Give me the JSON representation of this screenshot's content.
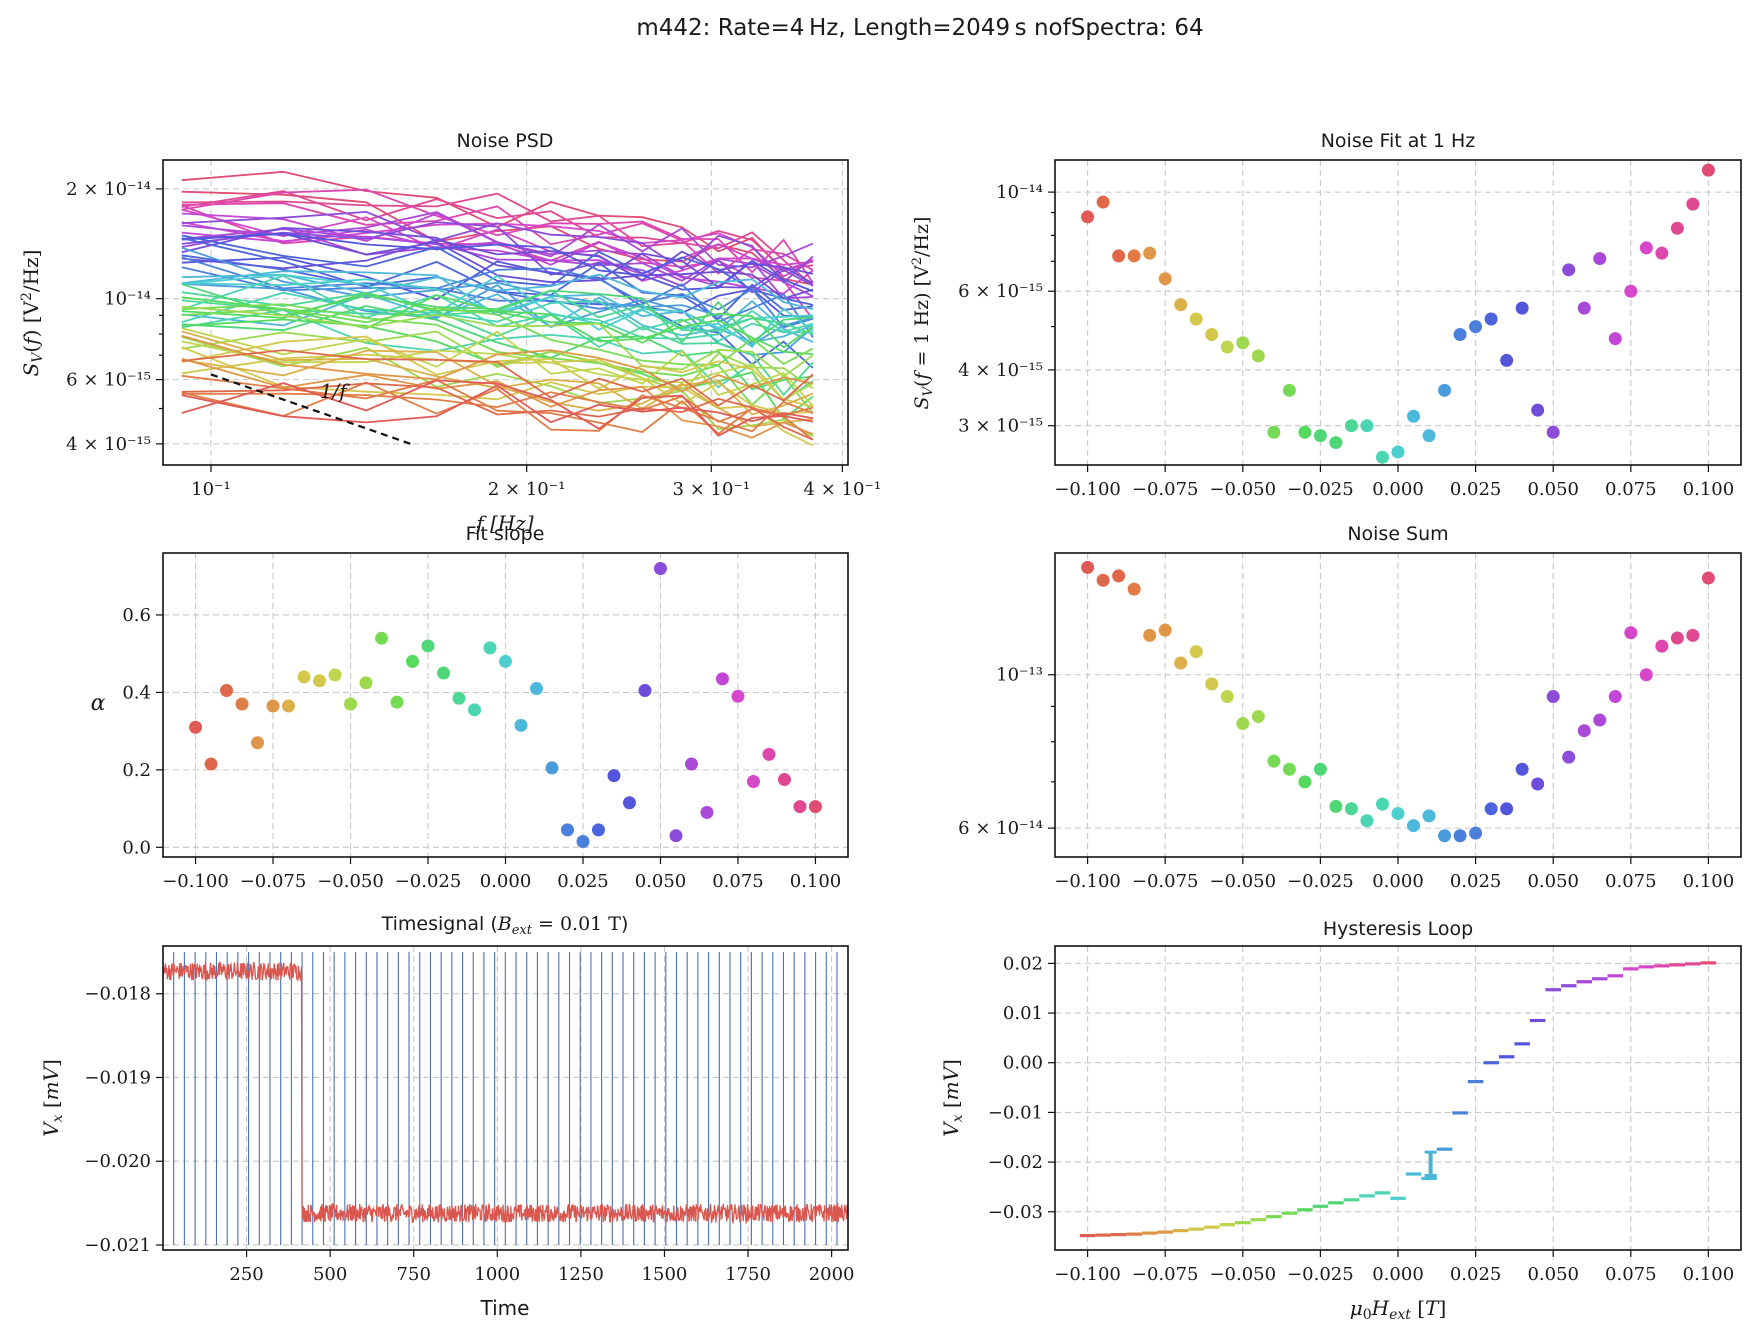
{
  "chart_data": {
    "suptitle": "m442: Rate=4 Hz, Length=2049 s nofSpectra: 64",
    "colors": [
      "#e05a56",
      "#e0684a",
      "#e17c47",
      "#df9648",
      "#dcb049",
      "#d3c84c",
      "#bfd54d",
      "#9dd94f",
      "#76db54",
      "#56da5e",
      "#4fd676",
      "#4cd795",
      "#4ad5b3",
      "#4dcfd0",
      "#4cb8da",
      "#4a9bdc",
      "#4a7fdb",
      "#4c64dc",
      "#5356da",
      "#6e4ed9",
      "#8c4cd9",
      "#aa49d8",
      "#c446d6",
      "#d747ca",
      "#de47ae",
      "#e04891",
      "#e14c73"
    ],
    "charts": [
      {
        "id": "noise_psd",
        "type": "line",
        "title": "Noise PSD",
        "xlabel": "f [Hz]",
        "ylabel": "S_V(f) [V²/Hz]",
        "xscale": "log",
        "yscale": "log",
        "xlim": [
          0.09,
          0.405
        ],
        "ylim": [
          3.5e-15,
          2.4e-14
        ],
        "xticks": [
          {
            "v": 0.1,
            "label": "10⁻¹"
          },
          {
            "v": 0.2,
            "label": "2 × 10⁻¹"
          },
          {
            "v": 0.3,
            "label": "3 × 10⁻¹"
          },
          {
            "v": 0.4,
            "label": "4 × 10⁻¹"
          }
        ],
        "yticks": [
          {
            "v": 4e-15,
            "label": "4 × 10⁻¹⁵"
          },
          {
            "v": 6e-15,
            "label": "6 × 10⁻¹⁵"
          },
          {
            "v": 1e-14,
            "label": "10⁻¹⁴"
          },
          {
            "v": 2e-14,
            "label": "2 × 10⁻¹⁴"
          }
        ],
        "x": [
          0.0938,
          0.1172,
          0.1406,
          0.1641,
          0.1875,
          0.2109,
          0.2344,
          0.2578,
          0.2813,
          0.3047,
          0.3281,
          0.3516,
          0.375
        ],
        "n_series": 64,
        "start_range": [
          5e-15,
          2.2e-14
        ],
        "end_range": [
          4.5e-15,
          1.25e-14
        ],
        "reference": {
          "label": "1/f",
          "x": [
            0.1,
            0.155
          ],
          "y": [
            6.2e-15,
            4e-15
          ]
        }
      },
      {
        "id": "noise_fit",
        "type": "scatter",
        "title": "Noise Fit at 1 Hz",
        "xlabel": "",
        "ylabel": "S_V(f = 1 Hz) [V²/Hz]",
        "yscale": "log",
        "xlim": [
          -0.1105,
          0.1105
        ],
        "ylim": [
          2.45e-15,
          1.18e-14
        ],
        "xticks": [
          {
            "v": -0.1,
            "label": "−0.100"
          },
          {
            "v": -0.075,
            "label": "−0.075"
          },
          {
            "v": -0.05,
            "label": "−0.050"
          },
          {
            "v": -0.025,
            "label": "−0.025"
          },
          {
            "v": 0.0,
            "label": "0.000"
          },
          {
            "v": 0.025,
            "label": "0.025"
          },
          {
            "v": 0.05,
            "label": "0.050"
          },
          {
            "v": 0.075,
            "label": "0.075"
          },
          {
            "v": 0.1,
            "label": "0.100"
          }
        ],
        "yticks": [
          {
            "v": 3e-15,
            "label": "3 × 10⁻¹⁵"
          },
          {
            "v": 4e-15,
            "label": "4 × 10⁻¹⁵"
          },
          {
            "v": 6e-15,
            "label": "6 × 10⁻¹⁵"
          },
          {
            "v": 1e-14,
            "label": "10⁻¹⁴"
          }
        ],
        "x": [
          -0.1,
          -0.095,
          -0.09,
          -0.085,
          -0.08,
          -0.075,
          -0.07,
          -0.065,
          -0.06,
          -0.055,
          -0.05,
          -0.045,
          -0.04,
          -0.035,
          -0.03,
          -0.025,
          -0.02,
          -0.015,
          -0.01,
          -0.005,
          0.0,
          0.005,
          0.01,
          0.015,
          0.02,
          0.025,
          0.03,
          0.035,
          0.04,
          0.045,
          0.05,
          0.055,
          0.06,
          0.065,
          0.07,
          0.075,
          0.08,
          0.085,
          0.09,
          0.095,
          0.1
        ],
        "y": [
          8.8e-15,
          9.5e-15,
          7.2e-15,
          7.2e-15,
          7.3e-15,
          6.4e-15,
          5.6e-15,
          5.2e-15,
          4.8e-15,
          4.5e-15,
          4.6e-15,
          4.3e-15,
          2.9e-15,
          3.6e-15,
          2.9e-15,
          2.85e-15,
          2.75e-15,
          3e-15,
          3e-15,
          2.55e-15,
          2.62e-15,
          3.15e-15,
          2.85e-15,
          3.6e-15,
          4.8e-15,
          5e-15,
          5.2e-15,
          4.2e-15,
          5.5e-15,
          3.25e-15,
          2.9e-15,
          6.7e-15,
          5.5e-15,
          7.1e-15,
          4.7e-15,
          6e-15,
          7.5e-15,
          7.3e-15,
          8.3e-15,
          9.4e-15,
          1.12e-14
        ]
      },
      {
        "id": "fit_slope",
        "type": "scatter",
        "title": "Fit slope",
        "xlabel": "",
        "ylabel": "α",
        "xlim": [
          -0.1105,
          0.1105
        ],
        "ylim": [
          -0.025,
          0.76
        ],
        "xticks": [
          {
            "v": -0.1,
            "label": "−0.100"
          },
          {
            "v": -0.075,
            "label": "−0.075"
          },
          {
            "v": -0.05,
            "label": "−0.050"
          },
          {
            "v": -0.025,
            "label": "−0.025"
          },
          {
            "v": 0.0,
            "label": "0.000"
          },
          {
            "v": 0.025,
            "label": "0.025"
          },
          {
            "v": 0.05,
            "label": "0.050"
          },
          {
            "v": 0.075,
            "label": "0.075"
          },
          {
            "v": 0.1,
            "label": "0.100"
          }
        ],
        "yticks": [
          {
            "v": 0.0,
            "label": "0.0"
          },
          {
            "v": 0.2,
            "label": "0.2"
          },
          {
            "v": 0.4,
            "label": "0.4"
          },
          {
            "v": 0.6,
            "label": "0.6"
          }
        ],
        "x": [
          -0.1,
          -0.095,
          -0.09,
          -0.085,
          -0.08,
          -0.075,
          -0.07,
          -0.065,
          -0.06,
          -0.055,
          -0.05,
          -0.045,
          -0.04,
          -0.035,
          -0.03,
          -0.025,
          -0.02,
          -0.015,
          -0.01,
          -0.005,
          0.0,
          0.005,
          0.01,
          0.015,
          0.02,
          0.025,
          0.03,
          0.035,
          0.04,
          0.045,
          0.05,
          0.055,
          0.06,
          0.065,
          0.07,
          0.075,
          0.08,
          0.085,
          0.09,
          0.095,
          0.1
        ],
        "y": [
          0.31,
          0.215,
          0.405,
          0.37,
          0.27,
          0.365,
          0.365,
          0.44,
          0.43,
          0.445,
          0.37,
          0.425,
          0.54,
          0.375,
          0.48,
          0.52,
          0.45,
          0.385,
          0.355,
          0.515,
          0.48,
          0.315,
          0.41,
          0.205,
          0.045,
          0.015,
          0.045,
          0.185,
          0.115,
          0.405,
          0.72,
          0.03,
          0.215,
          0.09,
          0.435,
          0.39,
          0.17,
          0.24,
          0.175,
          0.105,
          0.105
        ]
      },
      {
        "id": "noise_sum",
        "type": "scatter",
        "title": "Noise Sum",
        "xlabel": "",
        "ylabel": "",
        "yscale": "log",
        "xlim": [
          -0.1105,
          0.1105
        ],
        "ylim": [
          5.45e-14,
          1.5e-13
        ],
        "xticks": [
          {
            "v": -0.1,
            "label": "−0.100"
          },
          {
            "v": -0.075,
            "label": "−0.075"
          },
          {
            "v": -0.05,
            "label": "−0.050"
          },
          {
            "v": -0.025,
            "label": "−0.025"
          },
          {
            "v": 0.0,
            "label": "0.000"
          },
          {
            "v": 0.025,
            "label": "0.025"
          },
          {
            "v": 0.05,
            "label": "0.050"
          },
          {
            "v": 0.075,
            "label": "0.075"
          },
          {
            "v": 0.1,
            "label": "0.100"
          }
        ],
        "yticks": [
          {
            "v": 6e-14,
            "label": "6 × 10⁻¹⁴"
          },
          {
            "v": 1e-13,
            "label": "10⁻¹³"
          }
        ],
        "x": [
          -0.1,
          -0.095,
          -0.09,
          -0.085,
          -0.08,
          -0.075,
          -0.07,
          -0.065,
          -0.06,
          -0.055,
          -0.05,
          -0.045,
          -0.04,
          -0.035,
          -0.03,
          -0.025,
          -0.02,
          -0.015,
          -0.01,
          -0.005,
          0.0,
          0.005,
          0.01,
          0.015,
          0.02,
          0.025,
          0.03,
          0.035,
          0.04,
          0.045,
          0.05,
          0.055,
          0.06,
          0.065,
          0.07,
          0.075,
          0.08,
          0.085,
          0.09,
          0.095,
          0.1
        ],
        "y": [
          1.43e-13,
          1.37e-13,
          1.39e-13,
          1.33e-13,
          1.14e-13,
          1.16e-13,
          1.04e-13,
          1.08e-13,
          9.7e-14,
          9.3e-14,
          8.5e-14,
          8.7e-14,
          7.5e-14,
          7.3e-14,
          7e-14,
          7.3e-14,
          6.45e-14,
          6.4e-14,
          6.15e-14,
          6.5e-14,
          6.3e-14,
          6.05e-14,
          6.25e-14,
          5.85e-14,
          5.85e-14,
          5.9e-14,
          6.4e-14,
          6.4e-14,
          7.3e-14,
          6.95e-14,
          9.3e-14,
          7.6e-14,
          8.3e-14,
          8.6e-14,
          9.3e-14,
          1.15e-13,
          1e-13,
          1.1e-13,
          1.13e-13,
          1.14e-13,
          1.38e-13
        ]
      },
      {
        "id": "timesignal",
        "type": "line",
        "title": "Timesignal (B_ext = 0.01 T)",
        "xlabel": "Time",
        "ylabel": "V_x [mV]",
        "xlim": [
          0,
          2049
        ],
        "ylim": [
          -0.02106,
          -0.01743
        ],
        "xticks": [
          {
            "v": 250,
            "label": "250"
          },
          {
            "v": 500,
            "label": "500"
          },
          {
            "v": 750,
            "label": "750"
          },
          {
            "v": 1000,
            "label": "1000"
          },
          {
            "v": 1250,
            "label": "1250"
          },
          {
            "v": 1500,
            "label": "1500"
          },
          {
            "v": 1750,
            "label": "1750"
          },
          {
            "v": 2000,
            "label": "2000"
          }
        ],
        "yticks": [
          {
            "v": -0.021,
            "label": "−0.021"
          },
          {
            "v": -0.02,
            "label": "−0.020"
          },
          {
            "v": -0.019,
            "label": "−0.019"
          },
          {
            "v": -0.018,
            "label": "−0.018"
          }
        ],
        "signal": {
          "level_before": -0.01773,
          "level_after": -0.02062,
          "switch_time": 415,
          "noise_amplitude": 0.00011,
          "color": "#d9574f"
        },
        "spectrum_markers": {
          "start": 0,
          "step": 32,
          "count": 64,
          "ymin": -0.021,
          "ymax": -0.0175,
          "color": "#4c6fb0"
        }
      },
      {
        "id": "hysteresis",
        "type": "line",
        "title": "Hysteresis Loop",
        "xlabel": "μ₀H_ext [T]",
        "ylabel": "V_x [mV]",
        "xlim": [
          -0.1105,
          0.1105
        ],
        "ylim": [
          -0.0377,
          0.0235
        ],
        "xticks": [
          {
            "v": -0.1,
            "label": "−0.100"
          },
          {
            "v": -0.075,
            "label": "−0.075"
          },
          {
            "v": -0.05,
            "label": "−0.050"
          },
          {
            "v": -0.025,
            "label": "−0.025"
          },
          {
            "v": 0.0,
            "label": "0.000"
          },
          {
            "v": 0.025,
            "label": "0.025"
          },
          {
            "v": 0.05,
            "label": "0.050"
          },
          {
            "v": 0.075,
            "label": "0.075"
          },
          {
            "v": 0.1,
            "label": "0.100"
          }
        ],
        "yticks": [
          {
            "v": -0.03,
            "label": "−0.03"
          },
          {
            "v": -0.02,
            "label": "−0.02"
          },
          {
            "v": -0.01,
            "label": "−0.01"
          },
          {
            "v": 0.0,
            "label": "0.00"
          },
          {
            "v": 0.01,
            "label": "0.01"
          },
          {
            "v": 0.02,
            "label": "0.02"
          }
        ],
        "x": [
          -0.1,
          -0.095,
          -0.09,
          -0.085,
          -0.08,
          -0.075,
          -0.07,
          -0.065,
          -0.06,
          -0.055,
          -0.05,
          -0.045,
          -0.04,
          -0.035,
          -0.03,
          -0.025,
          -0.02,
          -0.015,
          -0.01,
          -0.005,
          0.0,
          0.005,
          0.01,
          0.015,
          0.02,
          0.025,
          0.03,
          0.035,
          0.04,
          0.045,
          0.05,
          0.055,
          0.06,
          0.065,
          0.07,
          0.075,
          0.08,
          0.085,
          0.09,
          0.095,
          0.1
        ],
        "y": [
          -0.0348,
          -0.0347,
          -0.0346,
          -0.0345,
          -0.0343,
          -0.0341,
          -0.0338,
          -0.0335,
          -0.0331,
          -0.0326,
          -0.0322,
          -0.0316,
          -0.031,
          -0.0303,
          -0.0296,
          -0.0289,
          -0.0282,
          -0.0276,
          -0.0268,
          -0.0262,
          -0.0273,
          -0.0224,
          -0.0233,
          -0.0174,
          -0.0101,
          -0.0038,
          0.0,
          0.0012,
          0.0038,
          0.0085,
          0.0147,
          0.0155,
          0.0163,
          0.0169,
          0.0175,
          0.0189,
          0.0193,
          0.0195,
          0.0197,
          0.0199,
          0.0201
        ],
        "error_bar": {
          "x": 0.0105,
          "low": -0.0227,
          "high": -0.018
        }
      }
    ]
  }
}
